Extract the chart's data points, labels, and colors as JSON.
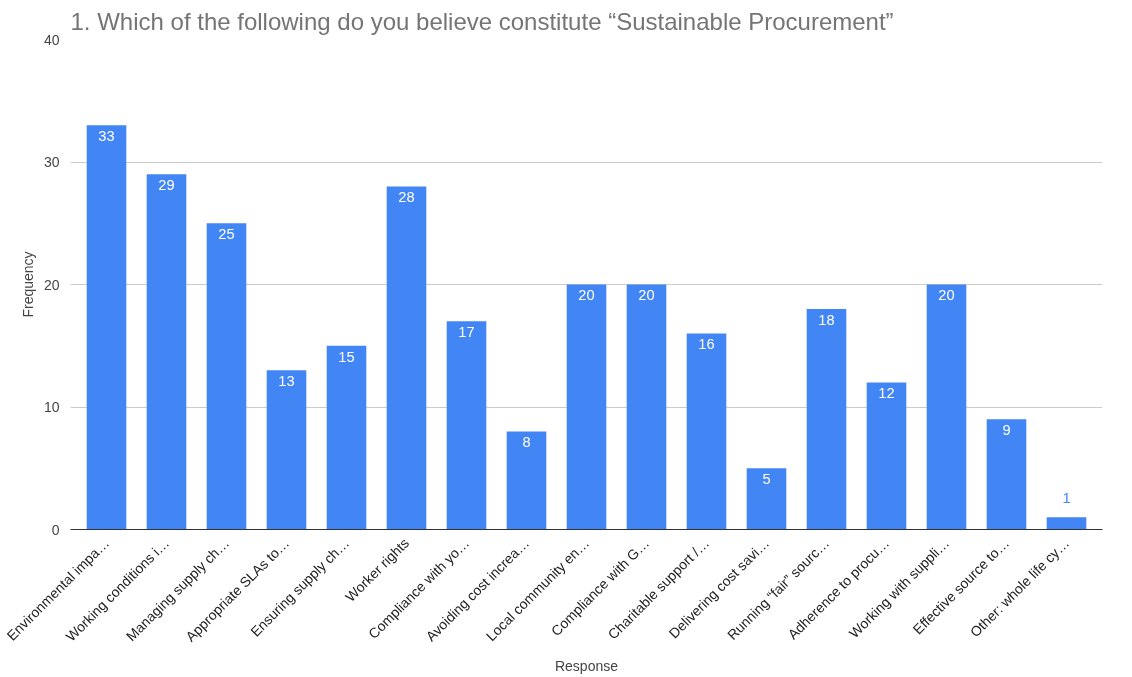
{
  "chart_data": {
    "type": "bar",
    "title": "1. Which of the following do you believe constitute “Sustainable Procurement”",
    "xlabel": "Response",
    "ylabel": "Frequency",
    "categories": [
      "Environmental impa…",
      "Working conditions i…",
      "Managing supply ch…",
      "Appropriate SLAs to…",
      "Ensuring supply ch…",
      "Worker rights",
      "Compliance with yo…",
      "Avoiding cost increa…",
      "Local community en…",
      "Compliance with G…",
      "Charitable support /…",
      "Delivering cost savi…",
      "Running “fair” sourc…",
      "Adherence to procu…",
      "Working with suppli…",
      "Effective source to…",
      "Other: whole life cy…"
    ],
    "values": [
      33,
      29,
      25,
      13,
      15,
      28,
      17,
      8,
      20,
      20,
      16,
      5,
      18,
      12,
      20,
      9,
      1
    ],
    "color": "#4285f4",
    "ylim": [
      0,
      40
    ],
    "yticks": [
      0,
      10,
      20,
      30,
      40
    ],
    "grid": "y",
    "data_labels": true
  }
}
